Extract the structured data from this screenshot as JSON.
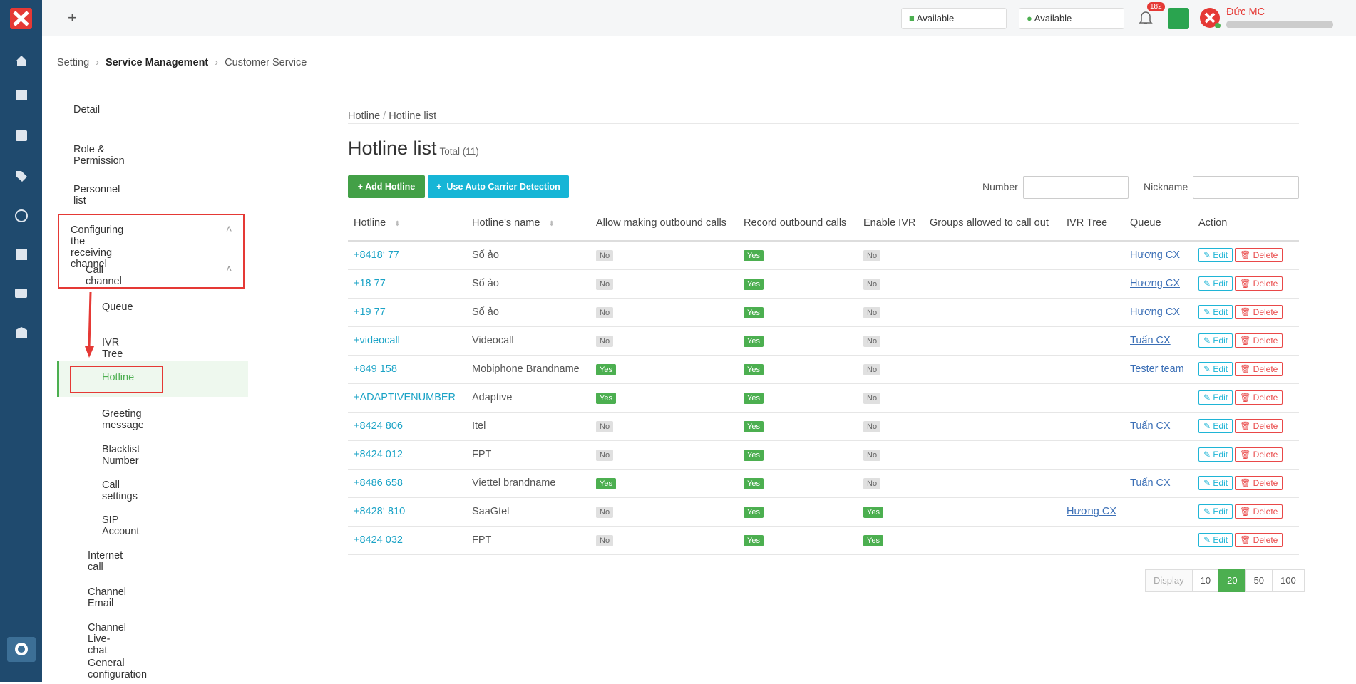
{
  "header": {
    "status_chat": "Available",
    "status_call": "Available",
    "notifications": "182",
    "user_name": "Đức MC"
  },
  "breadcrumb": [
    "Setting",
    "Service Management",
    "Customer Service"
  ],
  "menu": [
    {
      "label": "Detail",
      "level": 0
    },
    {
      "label": "Role & Permission",
      "level": 0
    },
    {
      "label": "Personnel list",
      "level": 0
    },
    {
      "label": "Configuring the receiving channel",
      "level": 0
    },
    {
      "label": "Call channel",
      "level": 1
    },
    {
      "label": "Queue",
      "level": 2
    },
    {
      "label": "IVR Tree",
      "level": 2
    },
    {
      "label": "Hotline",
      "level": 2,
      "active": true
    },
    {
      "label": "Greeting message",
      "level": 2
    },
    {
      "label": "Blacklist Number",
      "level": 2
    },
    {
      "label": "Call settings",
      "level": 2
    },
    {
      "label": "SIP Account",
      "level": 2
    },
    {
      "label": "Internet call",
      "level": 1
    },
    {
      "label": "Channel Email",
      "level": 1
    },
    {
      "label": "Channel Live-chat",
      "level": 1
    },
    {
      "label": "General configuration",
      "level": 1
    }
  ],
  "page": {
    "breadcrumb": [
      "Hotline",
      "Hotline list"
    ],
    "title": "Hotline list",
    "total": "Total (11)",
    "buttons": {
      "add": "Add Hotline",
      "auto": "Use Auto Carrier Detection"
    },
    "filters": [
      "Number",
      "Nickname"
    ]
  },
  "table": {
    "columns": [
      "Hotline",
      "Hotline's name",
      "Allow making outbound calls",
      "Record outbound calls",
      "Enable IVR",
      "Groups allowed to call out",
      "IVR Tree",
      "Queue",
      "Action"
    ],
    "badge_colors": {
      "Yes": "#4caf50",
      "No": "#e0e0e0"
    },
    "actions": {
      "edit": "Edit",
      "delete": "Delete"
    },
    "rows": [
      [
        "+8418‘   77",
        "Số ảo",
        "No",
        "Yes",
        "No",
        null,
        null,
        "Hương CX"
      ],
      [
        "+18      77",
        "Số ảo",
        "No",
        "Yes",
        "No",
        null,
        null,
        "Hương CX"
      ],
      [
        "+19      77",
        "Số ảo",
        "No",
        "Yes",
        "No",
        null,
        null,
        "Hương CX"
      ],
      [
        "+videocall",
        "Videocall",
        "No",
        "Yes",
        "No",
        null,
        null,
        "Tuấn CX"
      ],
      [
        "+849      158",
        "Mobiphone Brandname",
        "Yes",
        "Yes",
        "No",
        null,
        null,
        "Tester team"
      ],
      [
        "+ADAPTIVENUMBER",
        "Adaptive",
        "Yes",
        "Yes",
        "No",
        null,
        null,
        null
      ],
      [
        "+8424       806",
        "Itel",
        "No",
        "Yes",
        "No",
        null,
        null,
        "Tuấn CX"
      ],
      [
        "+8424       012",
        "FPT",
        "No",
        "Yes",
        "No",
        null,
        null,
        null
      ],
      [
        "+8486     658",
        "Viettel brandname",
        "Yes",
        "Yes",
        "No",
        null,
        null,
        "Tuấn CX"
      ],
      [
        "+8428‘      810",
        "SaaGtel",
        "No",
        "Yes",
        "Yes",
        null,
        "Hương CX",
        null
      ],
      [
        "+8424       032",
        "FPT",
        "No",
        "Yes",
        "Yes",
        null,
        null,
        null
      ]
    ]
  },
  "pagination": {
    "label": "Display",
    "sizes": [
      "10",
      "20",
      "50",
      "100"
    ],
    "active": 1
  }
}
